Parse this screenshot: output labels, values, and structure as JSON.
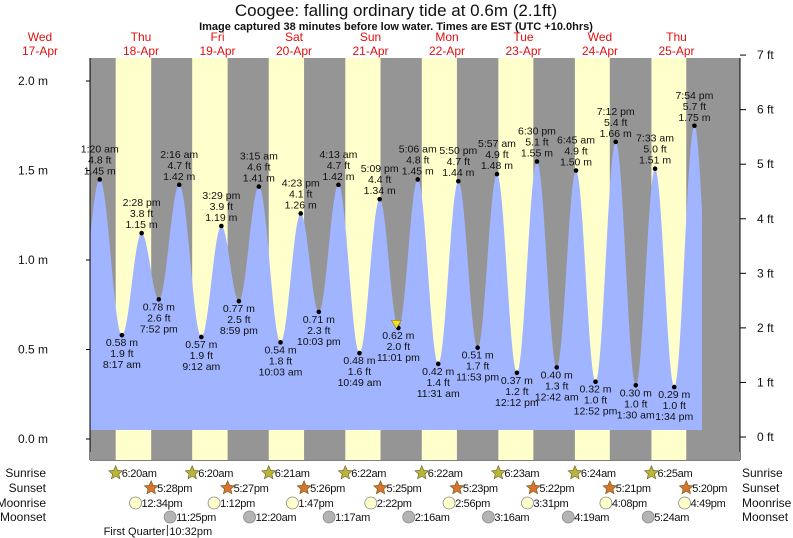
{
  "chart_data": {
    "type": "area",
    "title": "Coogee: falling  ordinary tide at 0.6m (2.1ft)",
    "subtitle": "Image captured 38 minutes before low water. Times are EST (UTC +10.0hrs)",
    "current_level_m": 0.6,
    "days": [
      {
        "dow": "Wed",
        "date": "17-Apr"
      },
      {
        "dow": "Thu",
        "date": "18-Apr"
      },
      {
        "dow": "Fri",
        "date": "19-Apr"
      },
      {
        "dow": "Sat",
        "date": "20-Apr"
      },
      {
        "dow": "Sun",
        "date": "21-Apr"
      },
      {
        "dow": "Mon",
        "date": "22-Apr"
      },
      {
        "dow": "Tue",
        "date": "23-Apr"
      },
      {
        "dow": "Wed",
        "date": "24-Apr"
      },
      {
        "dow": "Thu",
        "date": "25-Apr"
      }
    ],
    "y_axis_left": {
      "unit": "m",
      "ylim": [
        0,
        2
      ],
      "ticks": [
        {
          "value": 0.0,
          "label": "0.0 m"
        },
        {
          "value": 0.5,
          "label": "0.5 m"
        },
        {
          "value": 1.0,
          "label": "1.0 m"
        },
        {
          "value": 1.5,
          "label": "1.5 m"
        },
        {
          "value": 2.0,
          "label": "2.0 m"
        }
      ]
    },
    "y_axis_right": {
      "unit": "ft",
      "ticks": [
        {
          "value": 0,
          "label": "0 ft"
        },
        {
          "value": 1,
          "label": "1 ft"
        },
        {
          "value": 2,
          "label": "2 ft"
        },
        {
          "value": 3,
          "label": "3 ft"
        },
        {
          "value": 4,
          "label": "4 ft"
        },
        {
          "value": 5,
          "label": "5 ft"
        },
        {
          "value": 6,
          "label": "6 ft"
        },
        {
          "value": 7,
          "label": "7 ft"
        }
      ]
    },
    "extremes": [
      {
        "date": "18-Apr",
        "time": "1:20 am",
        "m": "1.45 m",
        "ft": "4.8 ft",
        "value": 1.45,
        "kind": "high"
      },
      {
        "date": "18-Apr",
        "time": "8:17 am",
        "m": "0.58 m",
        "ft": "1.9 ft",
        "value": 0.58,
        "kind": "low"
      },
      {
        "date": "18-Apr",
        "time": "2:28 pm",
        "m": "1.15 m",
        "ft": "3.8 ft",
        "value": 1.15,
        "kind": "high"
      },
      {
        "date": "18-Apr",
        "time": "7:52 pm",
        "m": "0.78 m",
        "ft": "2.6 ft",
        "value": 0.78,
        "kind": "low"
      },
      {
        "date": "19-Apr",
        "time": "2:16 am",
        "m": "1.42 m",
        "ft": "4.7 ft",
        "value": 1.42,
        "kind": "high"
      },
      {
        "date": "19-Apr",
        "time": "9:12 am",
        "m": "0.57 m",
        "ft": "1.9 ft",
        "value": 0.57,
        "kind": "low"
      },
      {
        "date": "19-Apr",
        "time": "3:29 pm",
        "m": "1.19 m",
        "ft": "3.9 ft",
        "value": 1.19,
        "kind": "high"
      },
      {
        "date": "19-Apr",
        "time": "8:59 pm",
        "m": "0.77 m",
        "ft": "2.5 ft",
        "value": 0.77,
        "kind": "low"
      },
      {
        "date": "20-Apr",
        "time": "3:15 am",
        "m": "1.41 m",
        "ft": "4.6 ft",
        "value": 1.41,
        "kind": "high"
      },
      {
        "date": "20-Apr",
        "time": "10:03 am",
        "m": "0.54 m",
        "ft": "1.8 ft",
        "value": 0.54,
        "kind": "low"
      },
      {
        "date": "20-Apr",
        "time": "4:23 pm",
        "m": "1.26 m",
        "ft": "4.1 ft",
        "value": 1.26,
        "kind": "high"
      },
      {
        "date": "20-Apr",
        "time": "10:03 pm",
        "m": "0.71 m",
        "ft": "2.3 ft",
        "value": 0.71,
        "kind": "low"
      },
      {
        "date": "21-Apr",
        "time": "4:13 am",
        "m": "1.42 m",
        "ft": "4.7 ft",
        "value": 1.42,
        "kind": "high"
      },
      {
        "date": "21-Apr",
        "time": "10:49 am",
        "m": "0.48 m",
        "ft": "1.6 ft",
        "value": 0.48,
        "kind": "low"
      },
      {
        "date": "21-Apr",
        "time": "5:09 pm",
        "m": "1.34 m",
        "ft": "4.4 ft",
        "value": 1.34,
        "kind": "high"
      },
      {
        "date": "21-Apr",
        "time": "11:01 pm",
        "m": "0.62 m",
        "ft": "2.0 ft",
        "value": 0.62,
        "kind": "low"
      },
      {
        "date": "22-Apr",
        "time": "5:06 am",
        "m": "1.45 m",
        "ft": "4.8 ft",
        "value": 1.45,
        "kind": "high"
      },
      {
        "date": "22-Apr",
        "time": "11:31 am",
        "m": "0.42 m",
        "ft": "1.4 ft",
        "value": 0.42,
        "kind": "low"
      },
      {
        "date": "22-Apr",
        "time": "5:50 pm",
        "m": "1.44 m",
        "ft": "4.7 ft",
        "value": 1.44,
        "kind": "high"
      },
      {
        "date": "22-Apr",
        "time": "11:53 pm",
        "m": "0.51 m",
        "ft": "1.7 ft",
        "value": 0.51,
        "kind": "low"
      },
      {
        "date": "23-Apr",
        "time": "5:57 am",
        "m": "1.48 m",
        "ft": "4.9 ft",
        "value": 1.48,
        "kind": "high"
      },
      {
        "date": "23-Apr",
        "time": "12:12 pm",
        "m": "0.37 m",
        "ft": "1.2 ft",
        "value": 0.37,
        "kind": "low"
      },
      {
        "date": "23-Apr",
        "time": "6:30 pm",
        "m": "1.55 m",
        "ft": "5.1 ft",
        "value": 1.55,
        "kind": "high"
      },
      {
        "date": "24-Apr",
        "time": "12:42 am",
        "m": "0.40 m",
        "ft": "1.3 ft",
        "value": 0.4,
        "kind": "low"
      },
      {
        "date": "24-Apr",
        "time": "6:45 am",
        "m": "1.50 m",
        "ft": "4.9 ft",
        "value": 1.5,
        "kind": "high"
      },
      {
        "date": "24-Apr",
        "time": "12:52 pm",
        "m": "0.32 m",
        "ft": "1.0 ft",
        "value": 0.32,
        "kind": "low"
      },
      {
        "date": "24-Apr",
        "time": "7:12 pm",
        "m": "1.66 m",
        "ft": "5.4 ft",
        "value": 1.66,
        "kind": "high"
      },
      {
        "date": "25-Apr",
        "time": "1:30 am",
        "m": "0.30 m",
        "ft": "1.0 ft",
        "value": 0.3,
        "kind": "low"
      },
      {
        "date": "25-Apr",
        "time": "7:33 am",
        "m": "1.51 m",
        "ft": "5.0 ft",
        "value": 1.51,
        "kind": "high"
      },
      {
        "date": "25-Apr",
        "time": "1:34 pm",
        "m": "0.29 m",
        "ft": "1.0 ft",
        "value": 0.29,
        "kind": "low"
      },
      {
        "date": "25-Apr",
        "time": "7:54 pm",
        "m": "1.75 m",
        "ft": "5.7 ft",
        "value": 1.75,
        "kind": "high"
      }
    ],
    "row_labels": {
      "sunrise": "Sunrise",
      "sunset": "Sunset",
      "moonrise": "Moonrise",
      "moonset": "Moonset"
    },
    "sunrise": [
      {
        "date": "18-Apr",
        "time": "6:20am"
      },
      {
        "date": "19-Apr",
        "time": "6:20am"
      },
      {
        "date": "20-Apr",
        "time": "6:21am"
      },
      {
        "date": "21-Apr",
        "time": "6:22am"
      },
      {
        "date": "22-Apr",
        "time": "6:22am"
      },
      {
        "date": "23-Apr",
        "time": "6:23am"
      },
      {
        "date": "24-Apr",
        "time": "6:24am"
      },
      {
        "date": "25-Apr",
        "time": "6:25am"
      }
    ],
    "sunset": [
      {
        "date": "18-Apr",
        "time": "5:28pm"
      },
      {
        "date": "19-Apr",
        "time": "5:27pm"
      },
      {
        "date": "20-Apr",
        "time": "5:26pm"
      },
      {
        "date": "21-Apr",
        "time": "5:25pm"
      },
      {
        "date": "22-Apr",
        "time": "5:23pm"
      },
      {
        "date": "23-Apr",
        "time": "5:22pm"
      },
      {
        "date": "24-Apr",
        "time": "5:21pm"
      },
      {
        "date": "25-Apr",
        "time": "5:20pm"
      }
    ],
    "moonrise": [
      {
        "date": "18-Apr",
        "time": "12:34pm"
      },
      {
        "date": "19-Apr",
        "time": "1:12pm"
      },
      {
        "date": "20-Apr",
        "time": "1:47pm"
      },
      {
        "date": "21-Apr",
        "time": "2:22pm"
      },
      {
        "date": "22-Apr",
        "time": "2:56pm"
      },
      {
        "date": "23-Apr",
        "time": "3:31pm"
      },
      {
        "date": "24-Apr",
        "time": "4:08pm"
      },
      {
        "date": "25-Apr",
        "time": "4:49pm"
      }
    ],
    "moonset": [
      {
        "date": "18-Apr",
        "time": "11:25pm"
      },
      {
        "date": "20-Apr",
        "time": "12:20am"
      },
      {
        "date": "21-Apr",
        "time": "1:17am"
      },
      {
        "date": "22-Apr",
        "time": "2:16am"
      },
      {
        "date": "23-Apr",
        "time": "3:16am"
      },
      {
        "date": "24-Apr",
        "time": "4:19am"
      },
      {
        "date": "25-Apr",
        "time": "5:24am"
      }
    ],
    "moon_phase": {
      "label": "First Quarter",
      "date": "18-Apr",
      "time": "10:32pm"
    },
    "colors": {
      "night": "#959595",
      "day": "#ffffcc",
      "water": "#a0b4ff",
      "day_labels": "#e01010",
      "sunrise": "#b8b43c",
      "sunset": "#d8742c",
      "moonrise": "#ffffcc",
      "moonset": "#b4b4b4",
      "current_marker": "#f0e020"
    }
  }
}
